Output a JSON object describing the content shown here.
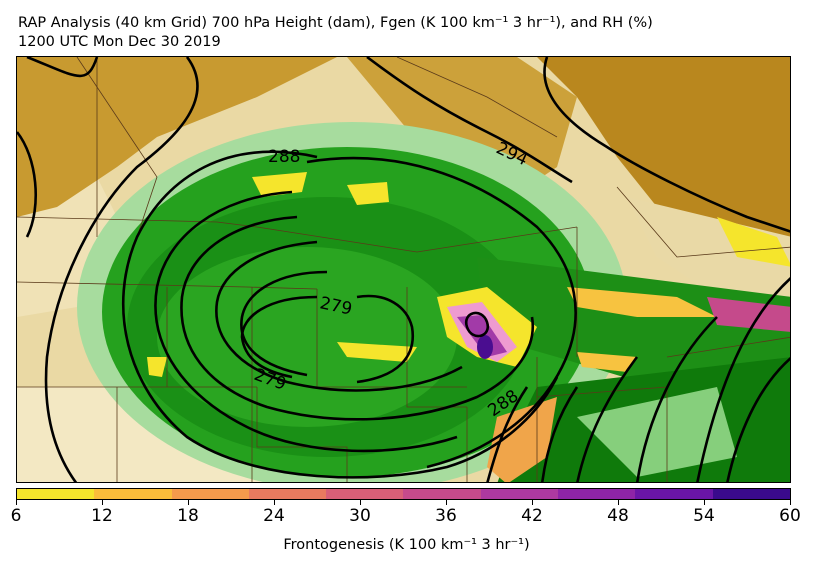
{
  "title_line1": "RAP Analysis (40 km Grid) 700 hPa Height (dam), Fgen (K 100 km⁻¹ 3 hr⁻¹), and RH (%)",
  "title_line2": "1200 UTC Mon Dec 30 2019",
  "colorbar": {
    "label": "Frontogenesis (K 100 km⁻¹ 3 hr⁻¹)",
    "ticks": [
      "6",
      "12",
      "18",
      "24",
      "30",
      "36",
      "42",
      "48",
      "54",
      "60"
    ],
    "colors": [
      "#f5e52c",
      "#fbbd3a",
      "#f59a4c",
      "#e97a5f",
      "#d85f77",
      "#c54a8b",
      "#ad39a0",
      "#8e24a6",
      "#6a15a6",
      "#3a0a8c"
    ]
  },
  "contour_labels": [
    {
      "text": "288",
      "id": "288-north"
    },
    {
      "text": "294",
      "id": "294"
    },
    {
      "text": "279",
      "id": "279-upper"
    },
    {
      "text": "279",
      "id": "279-lower"
    },
    {
      "text": "288",
      "id": "288-south"
    }
  ],
  "colors": {
    "dry_tan": "#e9d9a6",
    "dry_brown": "#c79a2b",
    "moist_green": "#1f9a1a",
    "saturated_green": "#117c0d",
    "light_green": "#8fd18a"
  }
}
